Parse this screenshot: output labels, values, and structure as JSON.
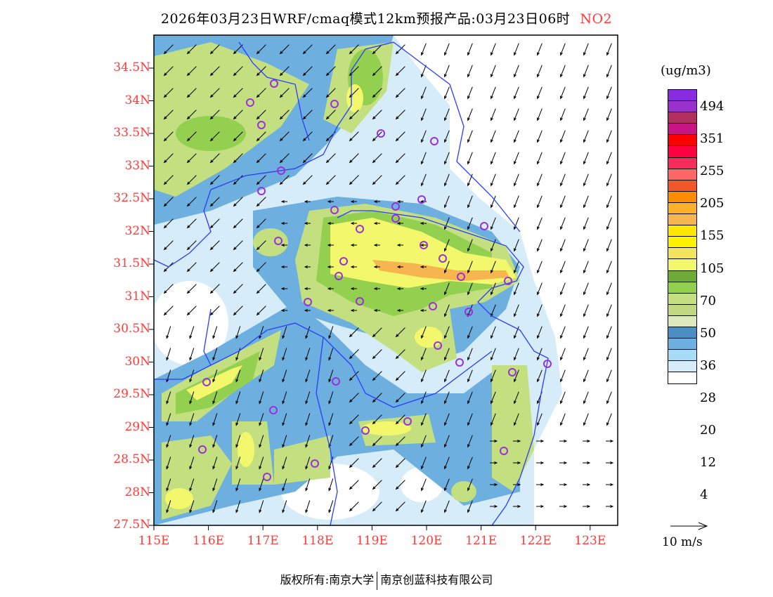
{
  "title": {
    "main": "2026年03月23日WRF/cmaq模式12km预报产品:03月23日06时",
    "species": "NO2"
  },
  "axes": {
    "lat_labels": [
      "34.5N",
      "34N",
      "33.5N",
      "33N",
      "32.5N",
      "32N",
      "31.5N",
      "31N",
      "30.5N",
      "30N",
      "29.5N",
      "29N",
      "28.5N",
      "28N",
      "27.5N"
    ],
    "lon_labels": [
      "115E",
      "116E",
      "117E",
      "118E",
      "119E",
      "120E",
      "121E",
      "122E",
      "123E"
    ]
  },
  "legend": {
    "unit": "(ug/m3)",
    "colors": [
      "#8a2be2",
      "#9932cc",
      "#b03060",
      "#c71585",
      "#ff0000",
      "#ff0040",
      "#f72c5a",
      "#ff6666",
      "#f0582a",
      "#ff8c00",
      "#ffb02a",
      "#f6b54e",
      "#ffe600",
      "#fff200",
      "#f2e45c",
      "#f3f76c",
      "#6eaa38",
      "#94d050",
      "#c3df80",
      "#c2d880",
      "#dfe9c0",
      "#4a8ec4",
      "#6db0e0",
      "#a6dcf5",
      "#d6edf9",
      "#ffffff"
    ],
    "labels": [
      "494",
      "351",
      "255",
      "205",
      "155",
      "105",
      "70",
      "50",
      "36",
      "28",
      "20",
      "12",
      "4"
    ],
    "wind_reference": "10 m/s"
  },
  "footer": {
    "copyright": "版权所有:南京大学",
    "company": "南京创蓝科技有限公司"
  }
}
